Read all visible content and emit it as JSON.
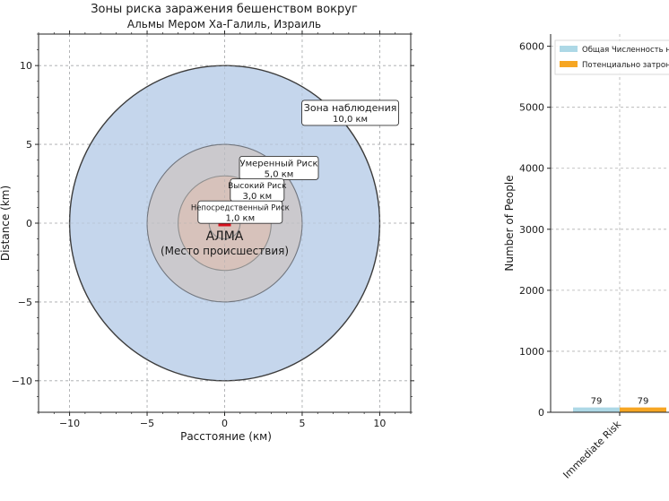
{
  "chart_data": [
    {
      "type": "zone-map",
      "title": "Зоны риска заражения бешенством вокруг",
      "subtitle": "Альмы Мером Ха-Галиль, Израиль",
      "xlabel": "Расстояние (км)",
      "ylabel": "Distance (km)",
      "xlim": [
        -12,
        12
      ],
      "ylim": [
        -12,
        12
      ],
      "xticks": [
        -10,
        -5,
        0,
        5,
        10
      ],
      "yticks": [
        -10,
        -5,
        0,
        5,
        10
      ],
      "xtick_labels": [
        "−10",
        "−5",
        "0",
        "5",
        "10"
      ],
      "ytick_labels": [
        "−10",
        "−5",
        "0",
        "5",
        "10"
      ],
      "grid": true,
      "zones": [
        {
          "name": "Зона наблюдения",
          "radius_label": "10,0 км",
          "radius": 10,
          "fill": "#c5d6ec",
          "edge": "#3c3c3c",
          "label_at": [
            8.1,
            7.0
          ]
        },
        {
          "name": "Умеренный Риск",
          "radius_label": "5,0 км",
          "radius": 5,
          "fill": "#cbc9cd",
          "edge": "#70757e",
          "label_at": [
            3.5,
            3.5
          ]
        },
        {
          "name": "Высокий Риск",
          "radius_label": "3,0 км",
          "radius": 3,
          "fill": "#d7c2bb",
          "edge": "#8f8f8f",
          "label_at": [
            2.1,
            2.1
          ]
        },
        {
          "name": "Непосредственный Риск",
          "radius_label": "1,0 км",
          "radius": 1,
          "fill": "#d7c2bb",
          "edge": "#8f8f8f",
          "label_at": [
            1.0,
            0.7
          ]
        }
      ],
      "center": {
        "label": "АЛМА",
        "sublabel": "(Место происшествия)",
        "marker_color": "#d6101c"
      }
    },
    {
      "type": "bar",
      "categories": [
        "Immediate Risk"
      ],
      "ylabel": "Number of People",
      "ylim": [
        0,
        6200
      ],
      "yticks": [
        0,
        1000,
        2000,
        3000,
        4000,
        5000,
        6000
      ],
      "ytick_labels": [
        "0",
        "1000",
        "2000",
        "3000",
        "4000",
        "5000",
        "6000"
      ],
      "grid": true,
      "legend_placement": "top-right",
      "series": [
        {
          "name": "Общая Численность населения",
          "values": [
            79
          ],
          "value_labels": [
            "79"
          ],
          "color": "#add8e6"
        },
        {
          "name": "Потенциально затронуто",
          "values": [
            79
          ],
          "value_labels": [
            "79"
          ],
          "color": "#f6a623"
        }
      ]
    }
  ]
}
